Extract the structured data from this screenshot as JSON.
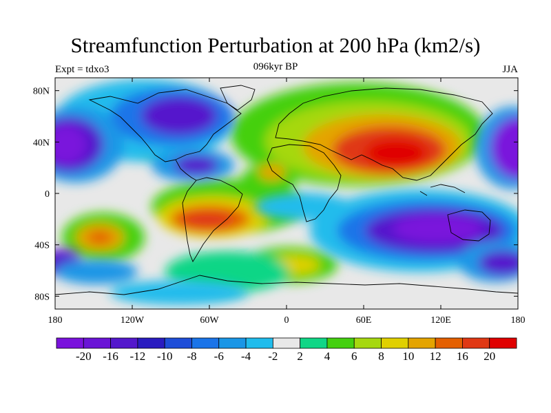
{
  "header": {
    "title": "Streamfunction Perturbation at 200 hPa (km2/s)",
    "left_label": "Expt = tdxo3",
    "center_label": "096kyr BP",
    "right_label": "JJA"
  },
  "map": {
    "x_ticks": [
      "180",
      "120W",
      "60W",
      "0",
      "60E",
      "120E",
      "180"
    ],
    "y_ticks": [
      "80N",
      "40N",
      "0",
      "40S",
      "80S"
    ],
    "x_tick_values": [
      -180,
      -120,
      -60,
      0,
      60,
      120,
      180
    ],
    "y_tick_values": [
      80,
      40,
      0,
      -40,
      -80
    ],
    "lon_range": [
      -180,
      180
    ],
    "lat_range": [
      -90,
      90
    ]
  },
  "colorbar": {
    "colors": [
      "#7a12dc",
      "#6a14d6",
      "#5418cc",
      "#2a1cc0",
      "#1e4ed8",
      "#1a74e8",
      "#1a96e6",
      "#20bcec",
      "#e8e8e8",
      "#10d686",
      "#44d010",
      "#a6d810",
      "#e0d000",
      "#e4a400",
      "#e46000",
      "#e03814",
      "#e00000"
    ],
    "labels": [
      "-20",
      "-16",
      "-12",
      "-10",
      "-8",
      "-6",
      "-4",
      "-2",
      "2",
      "4",
      "6",
      "8",
      "10",
      "12",
      "16",
      "20"
    ]
  },
  "chart_data": {
    "type": "heatmap",
    "title": "Streamfunction Perturbation at 200 hPa (km2/s)",
    "xlabel": "",
    "ylabel": "",
    "x_range": [
      -180,
      180
    ],
    "y_range": [
      -90,
      90
    ],
    "contour_levels": [
      -20,
      -16,
      -12,
      -10,
      -8,
      -6,
      -4,
      -2,
      2,
      4,
      6,
      8,
      10,
      12,
      16,
      20
    ],
    "features": [
      {
        "lon": 75,
        "lat": 35,
        "value": 22
      },
      {
        "lon": 95,
        "lat": 48,
        "value": 14
      },
      {
        "lon": 20,
        "lat": 55,
        "value": 8
      },
      {
        "lon": -15,
        "lat": 18,
        "value": 6
      },
      {
        "lon": -70,
        "lat": -22,
        "value": 16
      },
      {
        "lon": -143,
        "lat": -33,
        "value": 14
      },
      {
        "lon": 15,
        "lat": -55,
        "value": 9
      },
      {
        "lon": -95,
        "lat": 40,
        "value": 7
      },
      {
        "lon": -90,
        "lat": 58,
        "value": -15
      },
      {
        "lon": -72,
        "lat": 18,
        "value": -12
      },
      {
        "lon": -160,
        "lat": 38,
        "value": -17
      },
      {
        "lon": 175,
        "lat": 38,
        "value": -17
      },
      {
        "lon": 100,
        "lat": -35,
        "value": -19
      },
      {
        "lon": 170,
        "lat": -53,
        "value": -13
      },
      {
        "lon": -175,
        "lat": -53,
        "value": -9
      },
      {
        "lon": 0,
        "lat": -12,
        "value": -6
      },
      {
        "lon": -50,
        "lat": -62,
        "value": -4
      },
      {
        "lon": -120,
        "lat": 60,
        "value": -4
      }
    ]
  }
}
